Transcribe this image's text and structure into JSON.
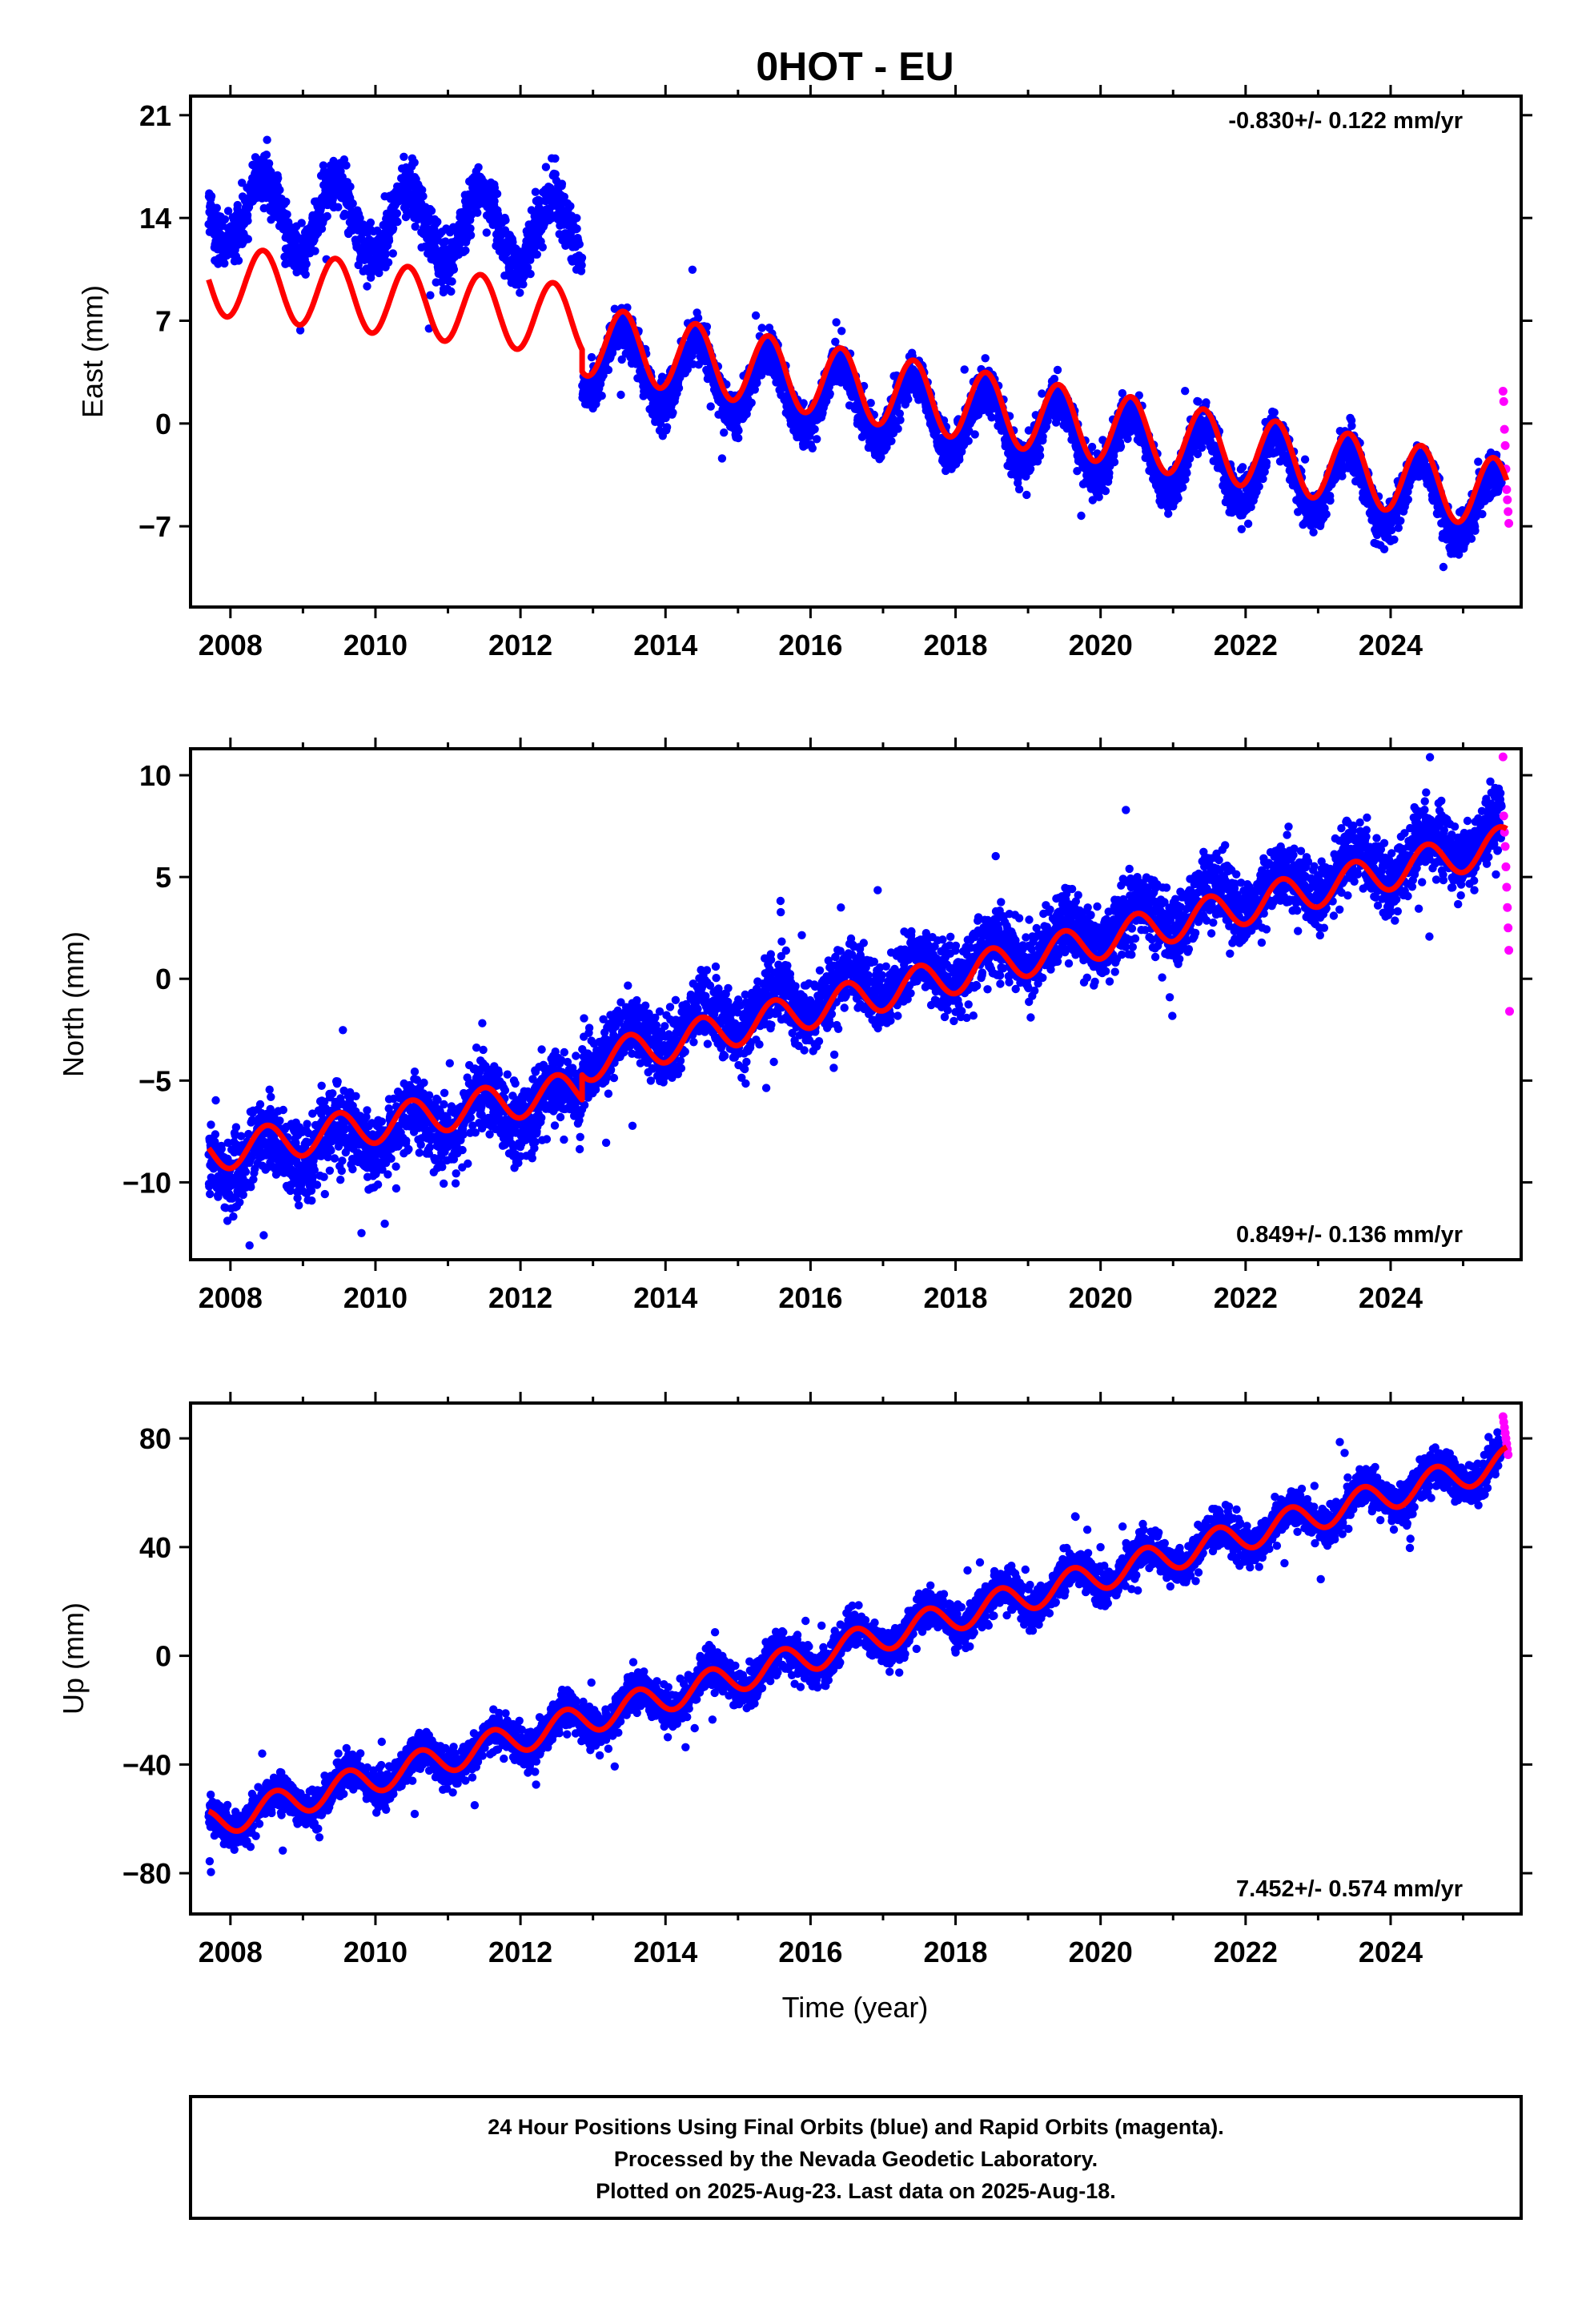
{
  "page": {
    "title": "0HOT - EU",
    "xlabel": "Time (year)",
    "footer": [
      "24 Hour Positions Using Final Orbits (blue) and Rapid Orbits (magenta).",
      "Processed by the Nevada Geodetic Laboratory.",
      "Plotted on 2025-Aug-23. Last data on 2025-Aug-18."
    ]
  },
  "colors": {
    "final_orbits": "#0000ff",
    "rapid_orbits": "#ff00ff",
    "model": "#ff0000",
    "frame": "#000000"
  },
  "chart_data": [
    {
      "type": "scatter",
      "ylabel": "East (mm)",
      "rate_label": "-0.830+/- 0.122 mm/yr",
      "rate_position": "top-right",
      "xlim": [
        2007.45,
        2025.8
      ],
      "ylim": [
        -12.5,
        22.3
      ],
      "xticks": [
        2008,
        2010,
        2012,
        2014,
        2016,
        2018,
        2020,
        2022,
        2024
      ],
      "yticks": [
        21,
        14,
        7,
        0,
        -7
      ],
      "ytick_labels": [
        "21",
        "14",
        "7",
        "0",
        "−7"
      ],
      "final_orbits": {
        "x_start": 2007.7,
        "x_end": 2025.53,
        "segments": [
          {
            "from": 2007.7,
            "to": 2012.85,
            "trend": -0.35,
            "value_at_2007_7": 14.6,
            "annual_amplitude": 2.5,
            "peak_phase": 0.45,
            "scatter": 1.5
          },
          {
            "from": 2012.85,
            "to": 2025.53,
            "trend": -0.83,
            "value_at_2012_85": 4.6,
            "annual_amplitude": 2.4,
            "peak_phase": 0.42,
            "scatter": 1.2
          }
        ]
      },
      "rapid_orbits": {
        "x": [
          2025.55,
          2025.56,
          2025.57,
          2025.58,
          2025.59,
          2025.6,
          2025.61,
          2025.62,
          2025.63
        ],
        "y": [
          2.2,
          1.5,
          -0.4,
          -1.5,
          -3.1,
          -4.5,
          -5.2,
          -6.0,
          -6.8
        ]
      },
      "model": {
        "segments": [
          {
            "from": 2007.7,
            "to": 2012.85,
            "trend": -0.55,
            "value_at_2007_7": 9.8,
            "annual_amplitude": 2.4,
            "peak_phase": 0.45
          },
          {
            "from": 2012.85,
            "to": 2025.6,
            "trend": -0.83,
            "value_at_2012_85": 5.7,
            "annual_amplitude": 2.4,
            "peak_phase": 0.42
          }
        ]
      }
    },
    {
      "type": "scatter",
      "ylabel": "North (mm)",
      "rate_label": "0.849+/- 0.136 mm/yr",
      "rate_position": "bottom-right",
      "xlim": [
        2007.45,
        2025.8
      ],
      "ylim": [
        -13.8,
        11.3
      ],
      "xticks": [
        2008,
        2010,
        2012,
        2014,
        2016,
        2018,
        2020,
        2022,
        2024
      ],
      "yticks": [
        10,
        5,
        0,
        -5,
        -10
      ],
      "ytick_labels": [
        "10",
        "5",
        "0",
        "−5",
        "−10"
      ],
      "final_orbits": {
        "x_start": 2007.7,
        "x_end": 2025.53,
        "segments": [
          {
            "from": 2007.7,
            "to": 2012.85,
            "trend": 0.62,
            "value_at_2007_7": -9.0,
            "annual_amplitude": 0.9,
            "peak_phase": 0.5,
            "scatter": 1.4
          },
          {
            "from": 2012.85,
            "to": 2025.53,
            "trend": 0.85,
            "value_at_2012_85": -3.7,
            "annual_amplitude": 0.9,
            "peak_phase": 0.5,
            "scatter": 1.3
          }
        ]
      },
      "rapid_orbits": {
        "x": [
          2025.55,
          2025.56,
          2025.57,
          2025.58,
          2025.59,
          2025.6,
          2025.61,
          2025.62,
          2025.63,
          2025.64
        ],
        "y": [
          10.9,
          8.0,
          7.2,
          6.5,
          5.5,
          4.5,
          3.5,
          2.5,
          1.4,
          -1.6
        ]
      },
      "model": {
        "segments": [
          {
            "from": 2007.7,
            "to": 2012.85,
            "trend": 0.62,
            "value_at_2007_7": -8.6,
            "annual_amplitude": 0.9,
            "peak_phase": 0.5
          },
          {
            "from": 2012.85,
            "to": 2025.6,
            "trend": 0.85,
            "value_at_2012_85": -4.2,
            "annual_amplitude": 0.9,
            "peak_phase": 0.5
          }
        ]
      }
    },
    {
      "type": "scatter",
      "ylabel": "Up (mm)",
      "rate_label": "7.452+/- 0.574 mm/yr",
      "rate_position": "bottom-right",
      "xlim": [
        2007.45,
        2025.8
      ],
      "ylim": [
        -95,
        93
      ],
      "xticks": [
        2008,
        2010,
        2012,
        2014,
        2016,
        2018,
        2020,
        2022,
        2024
      ],
      "yticks": [
        80,
        40,
        0,
        -40,
        -80
      ],
      "ytick_labels": [
        "80",
        "40",
        "0",
        "−40",
        "−80"
      ],
      "final_orbits": {
        "x_start": 2007.7,
        "x_end": 2025.53,
        "segments": [
          {
            "from": 2007.7,
            "to": 2025.53,
            "trend": 7.45,
            "value_at_2007_7": -62,
            "annual_amplitude": 5.5,
            "peak_phase": 0.62,
            "scatter": 5.5
          }
        ]
      },
      "rapid_orbits": {
        "x": [
          2025.55,
          2025.56,
          2025.57,
          2025.58,
          2025.59,
          2025.6,
          2025.61,
          2025.62
        ],
        "y": [
          88,
          86,
          84,
          82,
          80,
          78,
          76,
          74
        ]
      },
      "model": {
        "segments": [
          {
            "from": 2007.7,
            "to": 2025.6,
            "trend": 7.45,
            "value_at_2007_7": -62,
            "annual_amplitude": 5.5,
            "peak_phase": 0.62
          }
        ]
      }
    }
  ]
}
